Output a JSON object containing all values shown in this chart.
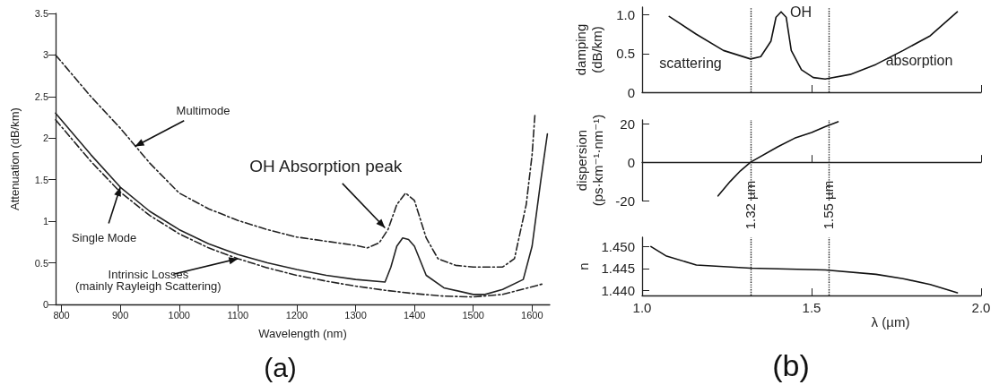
{
  "chart_data": [
    {
      "type": "line",
      "title": "(a)",
      "xlabel": "Wavelength (nm)",
      "ylabel": "Attenuation (dB/km)",
      "xlim": [
        790,
        1630
      ],
      "xticks": [
        800,
        900,
        1000,
        1100,
        1200,
        1300,
        1400,
        1500,
        1600
      ],
      "ylim": [
        0,
        3.5
      ],
      "yticks": [
        0,
        0.5,
        1,
        1.5,
        2,
        2.5,
        3,
        3.5
      ],
      "marker": "none",
      "series": [
        {
          "color": "#222222",
          "line_style": "dashed",
          "x": [
            790,
            850,
            900,
            950,
            1000,
            1050,
            1100,
            1150,
            1200,
            1250,
            1300,
            1320,
            1340,
            1355,
            1370,
            1385,
            1400,
            1420,
            1440,
            1470,
            1500,
            1550,
            1570,
            1590,
            1600,
            1605
          ],
          "values": [
            3.0,
            2.5,
            2.12,
            1.7,
            1.34,
            1.15,
            1.01,
            0.9,
            0.81,
            0.76,
            0.71,
            0.68,
            0.74,
            0.9,
            1.2,
            1.34,
            1.25,
            0.8,
            0.55,
            0.47,
            0.45,
            0.45,
            0.55,
            1.2,
            1.8,
            2.3
          ]
        },
        {
          "color": "#222222",
          "line_style": "solid",
          "x": [
            790,
            850,
            900,
            950,
            1000,
            1050,
            1100,
            1150,
            1200,
            1250,
            1300,
            1350,
            1360,
            1370,
            1380,
            1390,
            1400,
            1420,
            1450,
            1500,
            1520,
            1550,
            1585,
            1600,
            1615,
            1626
          ],
          "values": [
            2.3,
            1.8,
            1.41,
            1.12,
            0.9,
            0.73,
            0.6,
            0.5,
            0.42,
            0.35,
            0.3,
            0.27,
            0.45,
            0.7,
            0.8,
            0.78,
            0.7,
            0.35,
            0.2,
            0.12,
            0.12,
            0.18,
            0.3,
            0.7,
            1.5,
            2.05
          ]
        },
        {
          "color": "#222222",
          "line_style": "dashed",
          "x": [
            790,
            850,
            900,
            950,
            1000,
            1050,
            1100,
            1150,
            1200,
            1250,
            1300,
            1350,
            1400,
            1450,
            1500,
            1550,
            1620
          ],
          "values": [
            2.22,
            1.72,
            1.35,
            1.07,
            0.85,
            0.68,
            0.55,
            0.44,
            0.35,
            0.28,
            0.22,
            0.17,
            0.13,
            0.1,
            0.09,
            0.12,
            0.25
          ]
        }
      ],
      "annotations": [
        {
          "text": "Multimode",
          "x": 925,
          "y": 1.9
        },
        {
          "text": "Single Mode",
          "x": 900,
          "y": 1.41
        },
        {
          "text": "Intrinsic Losses\n(mainly Rayleigh Scattering)",
          "x": 1100,
          "y": 0.55
        },
        {
          "text": "OH Absorption peak",
          "x": 1350,
          "y": 0.92
        }
      ]
    },
    {
      "type": "line",
      "ylabel": "damping\n(dB/km)",
      "xlim": [
        1,
        2
      ],
      "xticks": [
        {
          "value": 1.5,
          "label": null
        },
        {
          "value": 2,
          "label": null
        }
      ],
      "ylim": [
        0,
        1.1
      ],
      "yticks": [
        0,
        0.5,
        {
          "value": 1,
          "label": "1.0"
        }
      ],
      "tick_labels": "y",
      "marker": "none",
      "series": [
        {
          "color": "#111111",
          "x": [
            1.08,
            1.16,
            1.24,
            1.32,
            1.35,
            1.38,
            1.395,
            1.41,
            1.425,
            1.44,
            1.47,
            1.505,
            1.54,
            1.614,
            1.69,
            1.77,
            1.85,
            1.93
          ],
          "values": [
            0.98,
            0.75,
            0.54,
            0.43,
            0.46,
            0.66,
            0.97,
            1.04,
            0.97,
            0.54,
            0.29,
            0.19,
            0.17,
            0.23,
            0.36,
            0.54,
            0.73,
            1.04
          ]
        }
      ],
      "ref_lines": [
        {
          "axis": "x",
          "value": 1.32,
          "line_style": "dotted"
        },
        {
          "axis": "x",
          "value": 1.55,
          "line_style": "dotted"
        }
      ],
      "annotations": [
        "scattering",
        {
          "text": "OH",
          "x": 1.41,
          "y": 1.04
        },
        "absorption"
      ]
    },
    {
      "type": "line",
      "ylabel": "dispersion\n(ps·km⁻¹·nm⁻¹)",
      "xlim": [
        1,
        2
      ],
      "xticks": [
        {
          "value": 1.5,
          "label": null
        },
        {
          "value": 2,
          "label": null
        }
      ],
      "ylim": [
        -20,
        22
      ],
      "yticks": [
        -20,
        0,
        20
      ],
      "tick_labels": "y",
      "marker": "none",
      "series": [
        {
          "color": "#111111",
          "x": [
            1.224,
            1.26,
            1.29,
            1.32,
            1.4,
            1.45,
            1.5,
            1.54,
            1.578
          ],
          "values": [
            -17.6,
            -10,
            -4.5,
            0,
            8,
            12.5,
            15.5,
            18.5,
            21.1
          ]
        }
      ],
      "ref_lines": [
        {
          "axis": "x",
          "value": 1.32,
          "line_style": "dotted"
        },
        {
          "axis": "x",
          "value": 1.55,
          "line_style": "dotted"
        }
      ]
    },
    {
      "type": "line",
      "title": "(b)",
      "xlabel": "λ (µm)",
      "ylabel": "n",
      "xlim": [
        1,
        2
      ],
      "xticks": [
        {
          "value": 1,
          "label": "1.0"
        },
        1.5,
        {
          "value": 2,
          "label": "2.0"
        }
      ],
      "ylim": [
        1.4389,
        1.4521
      ],
      "yticks": [
        {
          "value": 1.44,
          "label": "1.440"
        },
        1.445,
        {
          "value": 1.45,
          "label": "1.450"
        }
      ],
      "marker": "none",
      "series": [
        {
          "color": "#111111",
          "x": [
            1.026,
            1.07,
            1.16,
            1.32,
            1.54,
            1.69,
            1.77,
            1.85,
            1.93
          ],
          "values": [
            1.45,
            1.4479,
            1.4458,
            1.4451,
            1.4447,
            1.4437,
            1.4427,
            1.4414,
            1.4395
          ]
        }
      ],
      "ref_lines": [
        {
          "axis": "x",
          "value": 1.32,
          "label": "1.32 µm",
          "line_style": "dotted"
        },
        {
          "axis": "x",
          "value": 1.55,
          "label": "1.55 µm",
          "line_style": "dotted"
        }
      ]
    }
  ]
}
